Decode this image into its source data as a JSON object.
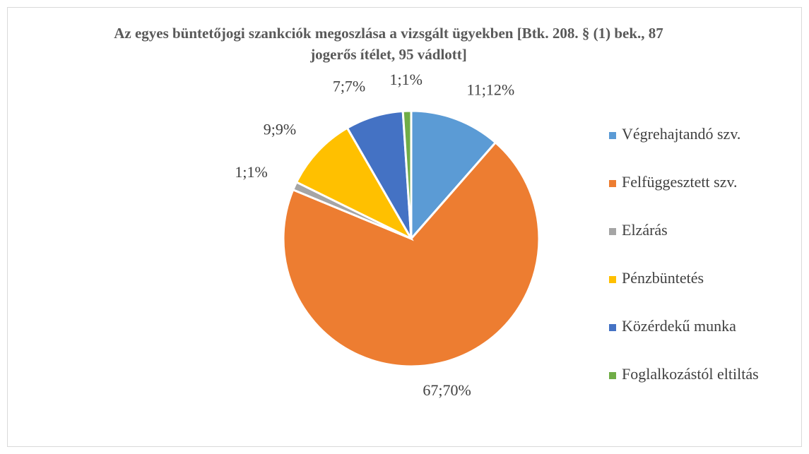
{
  "chart_data": {
    "type": "pie",
    "title": "Az egyes büntetőjogi szankciók megoszlása a vizsgált ügyekben [Btk. 208. § (1) bek., 87 jogerős ítélet, 95 vádlott]",
    "categories": [
      "Végrehajtandó szv.",
      "Felfüggesztett szv.",
      "Elzárás",
      "Pénzbüntetés",
      "Közérdekű munka",
      "Foglalkozástól eltiltás"
    ],
    "values": [
      11,
      67,
      1,
      9,
      7,
      1
    ],
    "value_labels": [
      "11;12%",
      "67;70%",
      "1;1%",
      "9;9%",
      "7;7%",
      "1;1%"
    ],
    "colors": [
      "#5b9bd5",
      "#ed7d31",
      "#a5a5a5",
      "#ffc000",
      "#4472c4",
      "#70ad47"
    ],
    "legend": "right"
  }
}
